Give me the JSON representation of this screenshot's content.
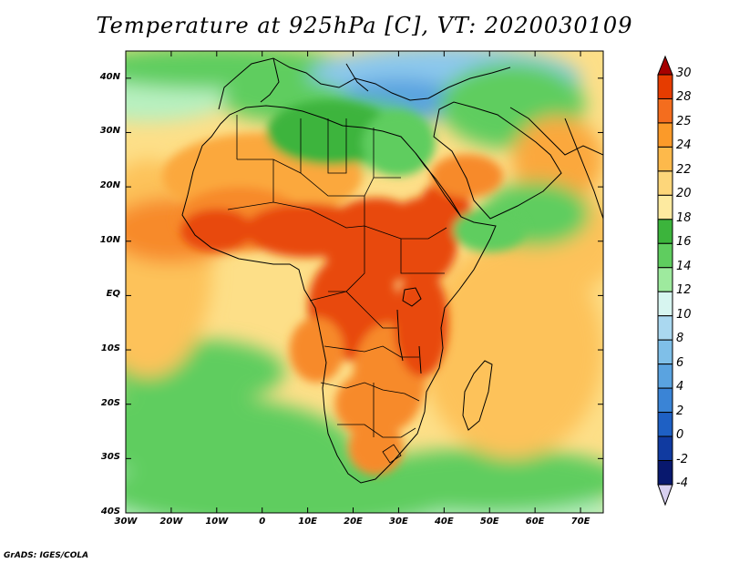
{
  "title": "Temperature at 925hPa [C], VT: 2020030109",
  "credit": "GrADS: IGES/COLA",
  "lat_labels": [
    "40N",
    "30N",
    "20N",
    "10N",
    "EQ",
    "10S",
    "20S",
    "30S",
    "40S"
  ],
  "lon_labels": [
    "30W",
    "20W",
    "10W",
    "0",
    "10E",
    "20E",
    "30E",
    "40E",
    "50E",
    "60E",
    "70E"
  ],
  "colorbar": {
    "labels": [
      "30",
      "28",
      "25",
      "24",
      "22",
      "20",
      "18",
      "16",
      "14",
      "12",
      "10",
      "8",
      "6",
      "4",
      "2",
      "0",
      "-2",
      "-4"
    ],
    "colors": [
      "#a50000",
      "#e63c00",
      "#f46d1e",
      "#fb9a29",
      "#fdb94b",
      "#fdd67a",
      "#fdeaa0",
      "#3cb43c",
      "#5fcd5f",
      "#9eea9e",
      "#d7f5f0",
      "#aad8f0",
      "#7fbfe8",
      "#5aa3e0",
      "#3a84d6",
      "#1e60c4",
      "#103aa0",
      "#08186e",
      "#d8d0f0"
    ]
  },
  "map": {
    "lon_range": [
      -30,
      75
    ],
    "lat_range": [
      -40,
      45
    ],
    "colors": {
      "ocean_warm": "#fdc25a",
      "ocean_mid": "#fddf88",
      "ocean_cool": "#5fcd5f",
      "ocean_cold": "#3cb43c",
      "pale": "#b8f0c0",
      "med_blue": "#8cc8ec",
      "med_deep": "#5aa3e0",
      "land_hot": "#e84a10",
      "land_warm": "#f78a2a",
      "land_mild": "#fba83c",
      "land_cool": "#3cb43c",
      "border": "#000000"
    }
  }
}
